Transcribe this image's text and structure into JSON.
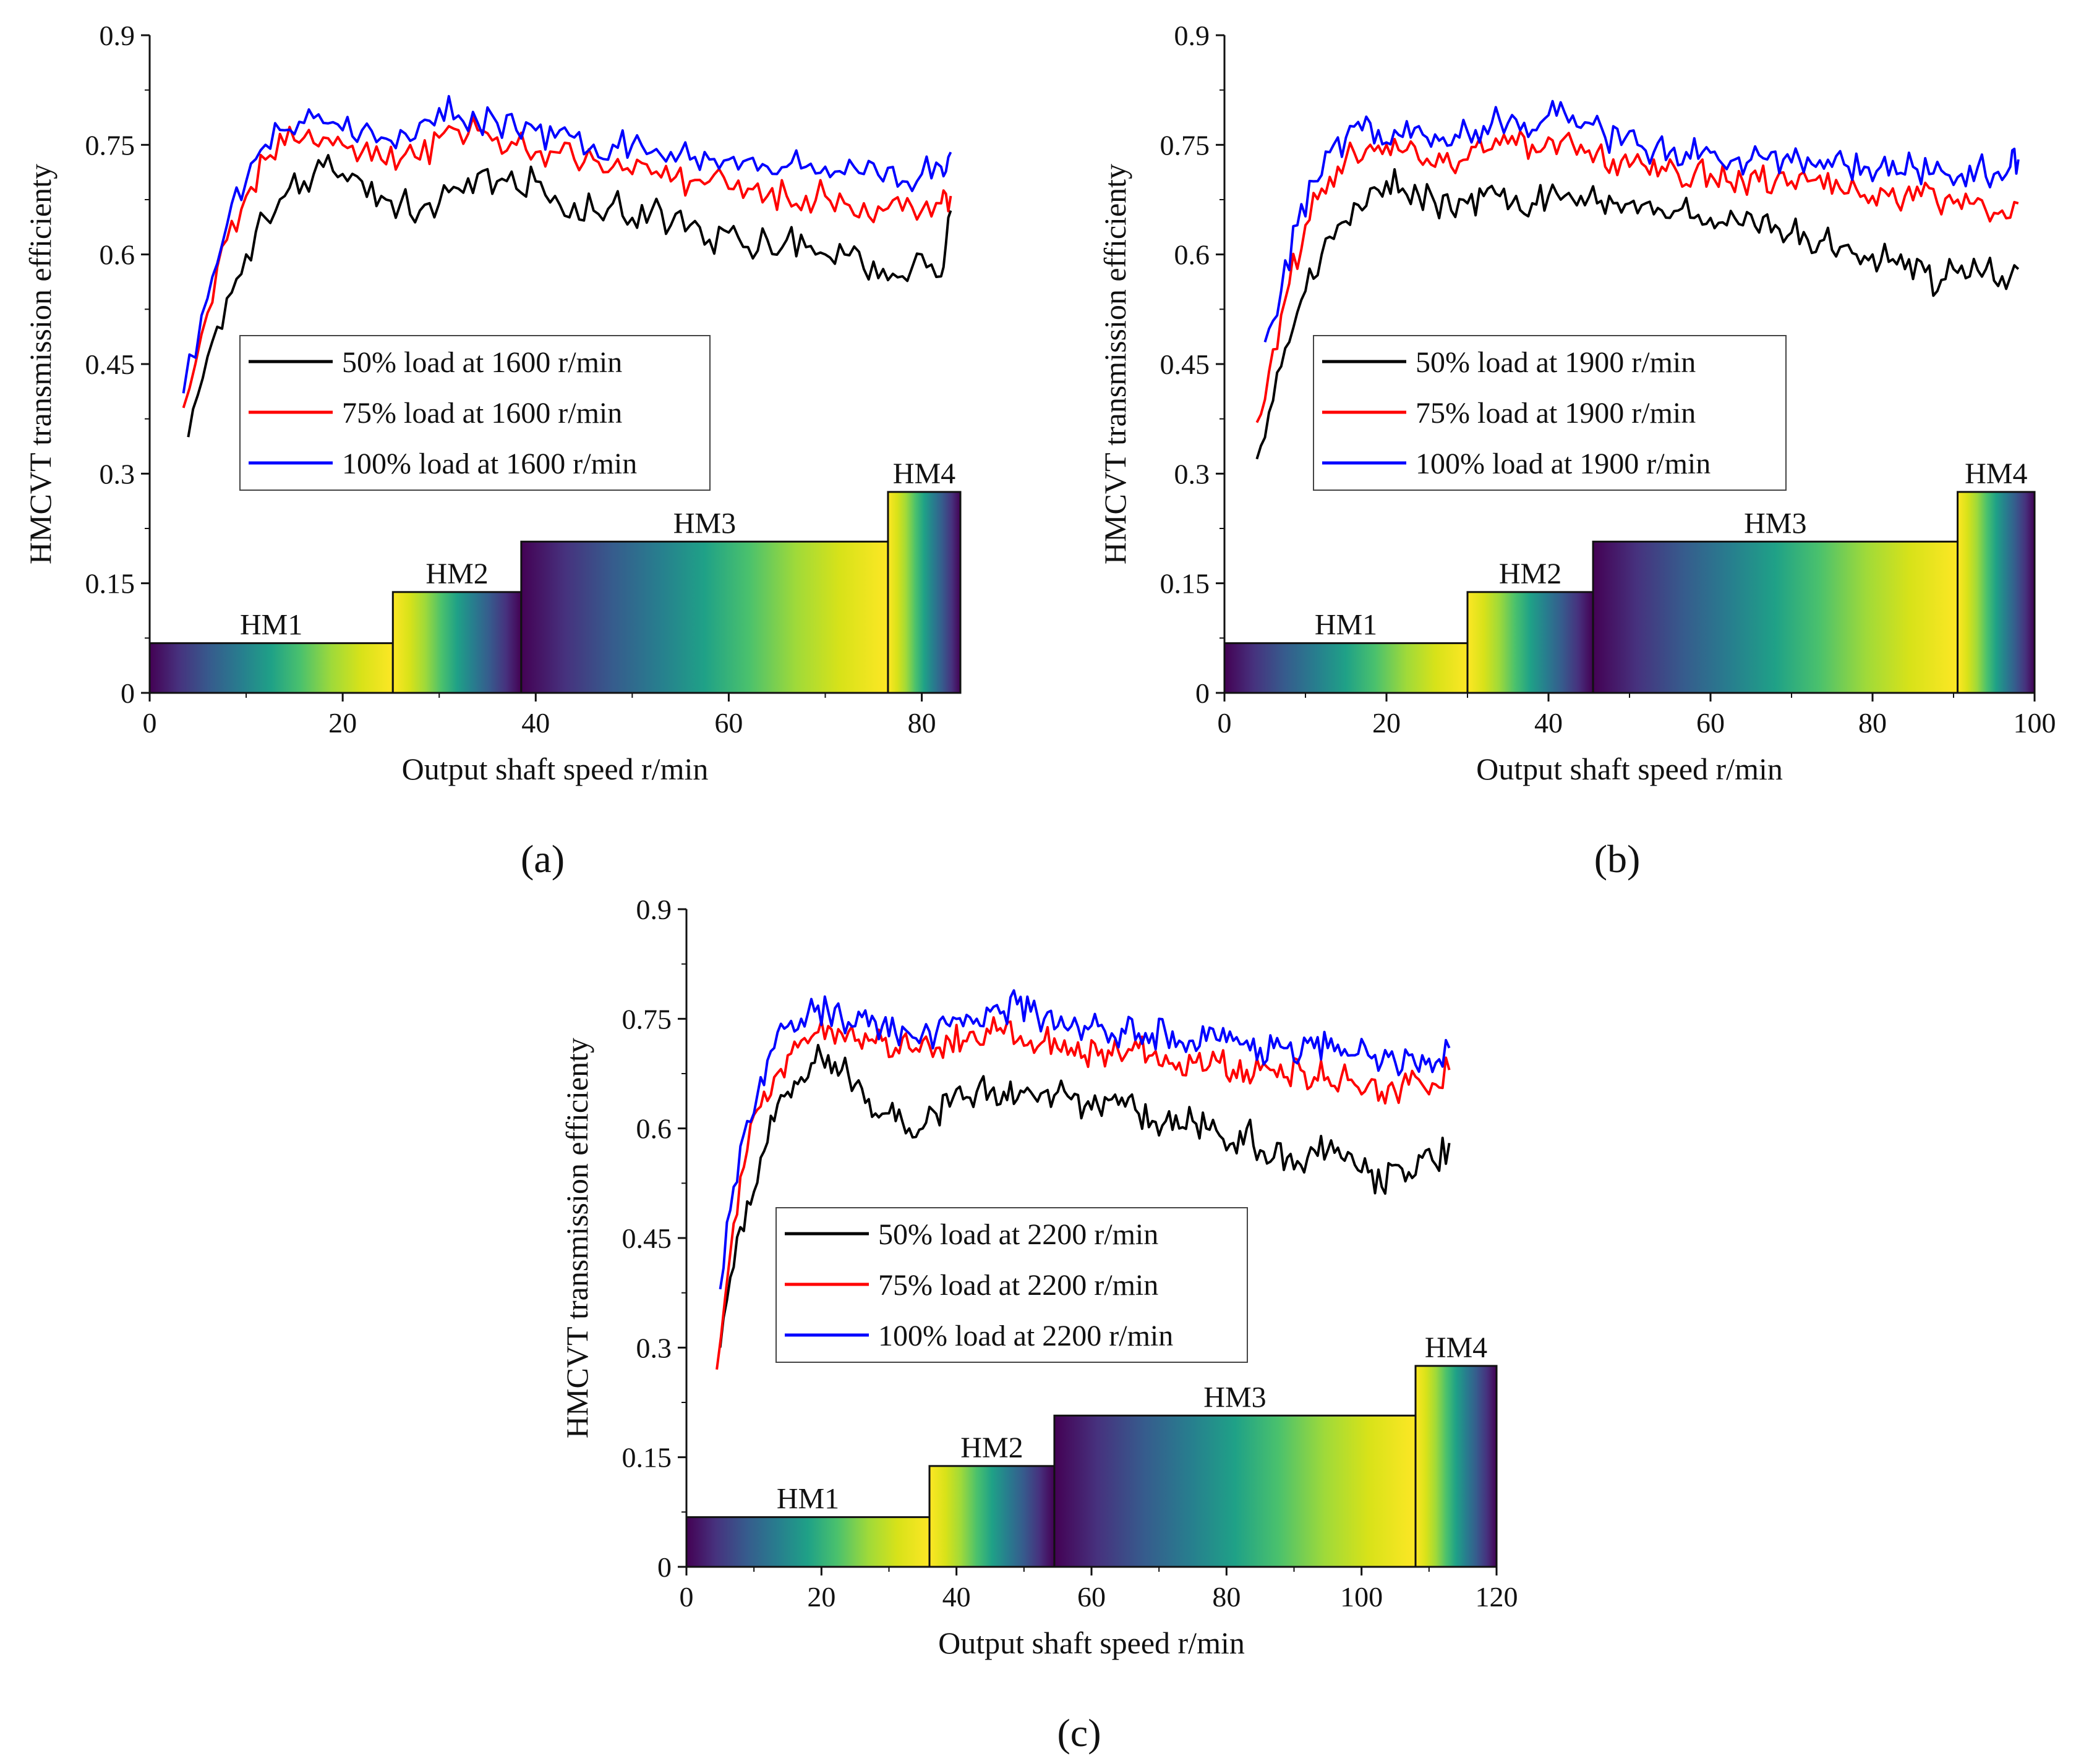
{
  "chart_data": [
    {
      "panel_label": "a",
      "type": "line",
      "xlabel": "Output shaft speed r/min",
      "ylabel": "HMCVT transmission efficienty",
      "xlim": [
        0,
        84
      ],
      "ylim": [
        0,
        0.9
      ],
      "xticks": [
        0,
        20,
        40,
        60,
        80
      ],
      "yticks": [
        0,
        0.15,
        0.3,
        0.45,
        0.6,
        0.75,
        0.9
      ],
      "ytick_labels": [
        "0",
        "0.15",
        "0.3",
        "0.45",
        "0.6",
        "0.75",
        "0.9"
      ],
      "legend_position": "center-left",
      "series": [
        {
          "name": "50% load at 1600 r/min",
          "color": "#000000",
          "x": [
            4,
            6,
            8,
            10,
            12,
            14,
            16,
            18,
            20,
            22,
            24,
            26,
            28,
            30,
            32,
            34,
            36,
            38,
            40,
            42,
            44,
            46,
            48,
            50,
            52,
            54,
            56,
            58,
            60,
            62,
            64,
            66,
            68,
            70,
            72,
            74,
            76,
            78,
            80,
            82,
            83
          ],
          "y": [
            0.35,
            0.46,
            0.54,
            0.6,
            0.65,
            0.68,
            0.7,
            0.72,
            0.71,
            0.7,
            0.68,
            0.67,
            0.66,
            0.67,
            0.69,
            0.71,
            0.7,
            0.69,
            0.7,
            0.68,
            0.67,
            0.66,
            0.67,
            0.65,
            0.66,
            0.64,
            0.64,
            0.62,
            0.63,
            0.61,
            0.62,
            0.62,
            0.61,
            0.6,
            0.6,
            0.58,
            0.58,
            0.57,
            0.6,
            0.57,
            0.66
          ]
        },
        {
          "name": "75% load at 1600 r/min",
          "color": "#ff0000",
          "x": [
            3.5,
            6,
            8,
            10,
            12,
            14,
            16,
            18,
            20,
            22,
            24,
            26,
            28,
            30,
            32,
            34,
            36,
            38,
            40,
            42,
            44,
            46,
            48,
            50,
            52,
            54,
            56,
            58,
            60,
            62,
            64,
            66,
            68,
            70,
            72,
            74,
            76,
            78,
            80,
            82,
            83
          ],
          "y": [
            0.39,
            0.52,
            0.62,
            0.68,
            0.73,
            0.75,
            0.76,
            0.76,
            0.75,
            0.74,
            0.73,
            0.73,
            0.73,
            0.76,
            0.77,
            0.77,
            0.76,
            0.75,
            0.74,
            0.74,
            0.73,
            0.73,
            0.72,
            0.71,
            0.71,
            0.7,
            0.7,
            0.7,
            0.69,
            0.69,
            0.68,
            0.68,
            0.68,
            0.68,
            0.67,
            0.67,
            0.66,
            0.66,
            0.66,
            0.67,
            0.68
          ]
        },
        {
          "name": "100% load at 1600 r/min",
          "color": "#0000ff",
          "x": [
            3.5,
            6,
            8,
            10,
            12,
            14,
            16,
            18,
            20,
            22,
            24,
            26,
            28,
            30,
            32,
            34,
            36,
            38,
            40,
            42,
            44,
            46,
            48,
            50,
            52,
            54,
            56,
            58,
            60,
            62,
            64,
            66,
            68,
            70,
            72,
            74,
            76,
            78,
            80,
            82,
            83
          ],
          "y": [
            0.41,
            0.54,
            0.64,
            0.7,
            0.75,
            0.77,
            0.78,
            0.78,
            0.77,
            0.77,
            0.76,
            0.77,
            0.78,
            0.8,
            0.79,
            0.78,
            0.78,
            0.77,
            0.77,
            0.76,
            0.76,
            0.75,
            0.75,
            0.75,
            0.74,
            0.74,
            0.73,
            0.73,
            0.73,
            0.73,
            0.72,
            0.72,
            0.72,
            0.72,
            0.71,
            0.71,
            0.7,
            0.7,
            0.71,
            0.72,
            0.74
          ]
        }
      ],
      "modes": [
        {
          "label": "HM1",
          "x0": 0,
          "x1": 25.2,
          "height": 0.068
        },
        {
          "label": "HM2",
          "x0": 25.2,
          "x1": 38.5,
          "height": 0.138
        },
        {
          "label": "HM3",
          "x0": 38.5,
          "x1": 76.5,
          "height": 0.207
        },
        {
          "label": "HM4",
          "x0": 76.5,
          "x1": 84,
          "height": 0.275
        }
      ]
    },
    {
      "panel_label": "b",
      "type": "line",
      "xlabel": "Output shaft speed r/min",
      "ylabel": "HMCVT transmission efficienty",
      "xlim": [
        0,
        100
      ],
      "ylim": [
        0,
        0.9
      ],
      "xticks": [
        0,
        20,
        40,
        60,
        80,
        100
      ],
      "yticks": [
        0,
        0.15,
        0.3,
        0.45,
        0.6,
        0.75,
        0.9
      ],
      "ytick_labels": [
        "0",
        "0.15",
        "0.3",
        "0.45",
        "0.6",
        "0.75",
        "0.9"
      ],
      "legend_position": "center-left",
      "series": [
        {
          "name": "50% load at 1900 r/min",
          "color": "#000000",
          "x": [
            4,
            6,
            8,
            10,
            12,
            14,
            16,
            18,
            20,
            22,
            24,
            26,
            28,
            30,
            32,
            34,
            36,
            38,
            40,
            42,
            44,
            46,
            48,
            50,
            52,
            54,
            56,
            58,
            60,
            62,
            64,
            66,
            68,
            70,
            72,
            74,
            76,
            78,
            80,
            82,
            84,
            86,
            88,
            90,
            92,
            94,
            96,
            98
          ],
          "y": [
            0.32,
            0.4,
            0.48,
            0.55,
            0.6,
            0.64,
            0.67,
            0.69,
            0.7,
            0.69,
            0.68,
            0.67,
            0.66,
            0.67,
            0.68,
            0.68,
            0.68,
            0.67,
            0.68,
            0.68,
            0.68,
            0.67,
            0.67,
            0.67,
            0.67,
            0.66,
            0.66,
            0.65,
            0.65,
            0.64,
            0.64,
            0.63,
            0.64,
            0.63,
            0.62,
            0.62,
            0.61,
            0.6,
            0.6,
            0.59,
            0.58,
            0.59,
            0.55,
            0.58,
            0.57,
            0.58,
            0.57,
            0.58
          ]
        },
        {
          "name": "75% load at 1900 r/min",
          "color": "#ff0000",
          "x": [
            4,
            6,
            8,
            10,
            12,
            14,
            16,
            18,
            20,
            22,
            24,
            26,
            28,
            30,
            32,
            34,
            36,
            38,
            40,
            42,
            44,
            46,
            48,
            50,
            52,
            54,
            56,
            58,
            60,
            62,
            64,
            66,
            68,
            70,
            72,
            74,
            76,
            78,
            80,
            82,
            84,
            86,
            88,
            90,
            92,
            94,
            96,
            98
          ],
          "y": [
            0.37,
            0.47,
            0.56,
            0.64,
            0.69,
            0.72,
            0.74,
            0.75,
            0.75,
            0.74,
            0.73,
            0.72,
            0.72,
            0.73,
            0.74,
            0.75,
            0.75,
            0.75,
            0.76,
            0.76,
            0.75,
            0.74,
            0.73,
            0.72,
            0.72,
            0.72,
            0.71,
            0.71,
            0.71,
            0.7,
            0.7,
            0.7,
            0.7,
            0.7,
            0.7,
            0.69,
            0.69,
            0.69,
            0.68,
            0.68,
            0.68,
            0.68,
            0.67,
            0.67,
            0.67,
            0.66,
            0.66,
            0.67
          ]
        },
        {
          "name": "100% load at 1900 r/min",
          "color": "#0000ff",
          "x": [
            5,
            7,
            9,
            11,
            13,
            15,
            17,
            19,
            21,
            23,
            25,
            27,
            29,
            31,
            33,
            35,
            37,
            39,
            41,
            43,
            45,
            47,
            49,
            51,
            53,
            55,
            57,
            59,
            61,
            63,
            65,
            67,
            69,
            71,
            73,
            75,
            77,
            79,
            81,
            83,
            85,
            87,
            89,
            91,
            93,
            95,
            97,
            98
          ],
          "y": [
            0.48,
            0.55,
            0.64,
            0.7,
            0.74,
            0.76,
            0.77,
            0.77,
            0.77,
            0.76,
            0.76,
            0.76,
            0.76,
            0.77,
            0.78,
            0.78,
            0.78,
            0.78,
            0.79,
            0.79,
            0.78,
            0.76,
            0.75,
            0.75,
            0.74,
            0.74,
            0.74,
            0.74,
            0.73,
            0.73,
            0.73,
            0.73,
            0.73,
            0.73,
            0.72,
            0.72,
            0.72,
            0.72,
            0.72,
            0.71,
            0.72,
            0.71,
            0.71,
            0.71,
            0.72,
            0.71,
            0.72,
            0.73
          ]
        }
      ],
      "modes": [
        {
          "label": "HM1",
          "x0": 0,
          "x1": 30,
          "height": 0.068
        },
        {
          "label": "HM2",
          "x0": 30,
          "x1": 45.5,
          "height": 0.138
        },
        {
          "label": "HM3",
          "x0": 45.5,
          "x1": 90.5,
          "height": 0.207
        },
        {
          "label": "HM4",
          "x0": 90.5,
          "x1": 100,
          "height": 0.275
        }
      ]
    },
    {
      "panel_label": "c",
      "type": "line",
      "xlabel": "Output shaft speed r/min",
      "ylabel": "HMCVT transmission efficienty",
      "xlim": [
        0,
        120
      ],
      "ylim": [
        0,
        0.9
      ],
      "xticks": [
        0,
        20,
        40,
        60,
        80,
        100,
        120
      ],
      "yticks": [
        0,
        0.15,
        0.3,
        0.45,
        0.6,
        0.75,
        0.9
      ],
      "ytick_labels": [
        "0",
        "0.15",
        "0.3",
        "0.45",
        "0.6",
        "0.75",
        "0.9"
      ],
      "legend_position": "center-left",
      "series": [
        {
          "name": "50% load at 2200 r/min",
          "color": "#000000",
          "x": [
            5,
            7,
            9,
            11,
            13,
            15,
            17,
            19,
            21,
            23,
            25,
            27,
            29,
            31,
            33,
            35,
            37,
            39,
            41,
            43,
            45,
            47,
            49,
            51,
            53,
            55,
            57,
            59,
            61,
            63,
            65,
            67,
            69,
            71,
            73,
            75,
            77,
            79,
            81,
            83,
            85,
            87,
            89,
            91,
            93,
            95,
            97,
            99,
            101,
            103,
            105,
            107,
            109,
            111,
            113
          ],
          "y": [
            0.3,
            0.41,
            0.5,
            0.56,
            0.61,
            0.65,
            0.67,
            0.69,
            0.7,
            0.68,
            0.66,
            0.64,
            0.62,
            0.61,
            0.6,
            0.6,
            0.62,
            0.63,
            0.64,
            0.65,
            0.65,
            0.65,
            0.64,
            0.65,
            0.65,
            0.65,
            0.64,
            0.63,
            0.63,
            0.64,
            0.63,
            0.62,
            0.61,
            0.61,
            0.6,
            0.61,
            0.6,
            0.59,
            0.58,
            0.6,
            0.57,
            0.56,
            0.56,
            0.55,
            0.57,
            0.57,
            0.56,
            0.55,
            0.54,
            0.52,
            0.55,
            0.54,
            0.56,
            0.55,
            0.58
          ]
        },
        {
          "name": "75% load at 2200 r/min",
          "color": "#ff0000",
          "x": [
            4.5,
            7,
            9,
            11,
            13,
            15,
            17,
            19,
            21,
            23,
            25,
            27,
            29,
            31,
            33,
            35,
            37,
            39,
            41,
            43,
            45,
            47,
            49,
            51,
            53,
            55,
            57,
            59,
            61,
            63,
            65,
            67,
            69,
            71,
            73,
            75,
            77,
            79,
            81,
            83,
            85,
            87,
            89,
            91,
            93,
            95,
            97,
            99,
            101,
            103,
            105,
            107,
            109,
            111,
            113
          ],
          "y": [
            0.27,
            0.47,
            0.57,
            0.63,
            0.67,
            0.7,
            0.72,
            0.73,
            0.74,
            0.73,
            0.72,
            0.72,
            0.72,
            0.71,
            0.71,
            0.72,
            0.71,
            0.72,
            0.72,
            0.72,
            0.73,
            0.73,
            0.72,
            0.72,
            0.72,
            0.71,
            0.71,
            0.7,
            0.7,
            0.7,
            0.7,
            0.71,
            0.7,
            0.7,
            0.69,
            0.69,
            0.68,
            0.69,
            0.68,
            0.68,
            0.68,
            0.68,
            0.67,
            0.68,
            0.67,
            0.67,
            0.67,
            0.66,
            0.66,
            0.65,
            0.65,
            0.66,
            0.66,
            0.66,
            0.68
          ]
        },
        {
          "name": "100% load at 2200 r/min",
          "color": "#0000ff",
          "x": [
            5,
            7,
            9,
            11,
            13,
            15,
            17,
            19,
            21,
            23,
            25,
            27,
            29,
            31,
            33,
            35,
            37,
            39,
            41,
            43,
            45,
            47,
            49,
            51,
            53,
            55,
            57,
            59,
            61,
            63,
            65,
            67,
            69,
            71,
            73,
            75,
            77,
            79,
            81,
            83,
            85,
            87,
            89,
            91,
            93,
            95,
            97,
            99,
            101,
            103,
            105,
            107,
            109,
            111,
            113
          ],
          "y": [
            0.38,
            0.52,
            0.61,
            0.67,
            0.71,
            0.74,
            0.75,
            0.76,
            0.76,
            0.75,
            0.74,
            0.74,
            0.74,
            0.73,
            0.73,
            0.73,
            0.73,
            0.74,
            0.74,
            0.75,
            0.76,
            0.76,
            0.77,
            0.76,
            0.75,
            0.74,
            0.74,
            0.74,
            0.74,
            0.73,
            0.73,
            0.73,
            0.73,
            0.73,
            0.72,
            0.72,
            0.72,
            0.72,
            0.72,
            0.72,
            0.71,
            0.71,
            0.71,
            0.7,
            0.71,
            0.71,
            0.7,
            0.7,
            0.7,
            0.69,
            0.69,
            0.7,
            0.7,
            0.69,
            0.71
          ]
        }
      ],
      "modes": [
        {
          "label": "HM1",
          "x0": 0,
          "x1": 36,
          "height": 0.068
        },
        {
          "label": "HM2",
          "x0": 36,
          "x1": 54.5,
          "height": 0.138
        },
        {
          "label": "HM3",
          "x0": 54.5,
          "x1": 108,
          "height": 0.207
        },
        {
          "label": "HM4",
          "x0": 108,
          "x1": 120,
          "height": 0.275
        }
      ]
    }
  ]
}
